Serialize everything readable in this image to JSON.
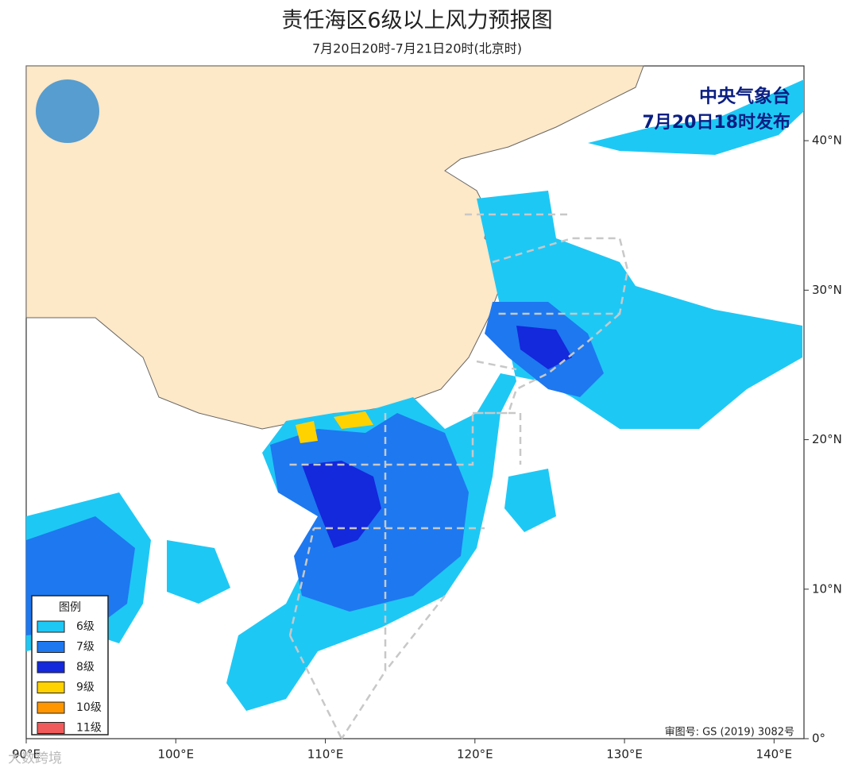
{
  "title": "责任海区6级以上风力预报图",
  "subtitle": "7月20日20时-7月21日20时(北京时)",
  "issuer": "中央气象台",
  "issued": "7月20日18时发布",
  "approval": "审图号: GS (2019) 3082号",
  "watermark": "大数跨境",
  "legend": {
    "title": "图例",
    "items": [
      {
        "label": "6级",
        "color": "#1ec8f5"
      },
      {
        "label": "7级",
        "color": "#1e78f0"
      },
      {
        "label": "8级",
        "color": "#1428dc"
      },
      {
        "label": "9级",
        "color": "#ffd200"
      },
      {
        "label": "10级",
        "color": "#ff9600"
      },
      {
        "label": "11级",
        "color": "#f05a5a"
      }
    ]
  },
  "map": {
    "xlim": [
      90,
      142
    ],
    "ylim": [
      0,
      45
    ],
    "xticks": [
      {
        "value": 90,
        "label": "90°E"
      },
      {
        "value": 100,
        "label": "100°E"
      },
      {
        "value": 110,
        "label": "110°E"
      },
      {
        "value": 120,
        "label": "120°E"
      },
      {
        "value": 130,
        "label": "130°E"
      },
      {
        "value": 140,
        "label": "140°E"
      }
    ],
    "yticks": [
      {
        "value": 0,
        "label": "0°"
      },
      {
        "value": 10,
        "label": "10°N"
      },
      {
        "value": 20,
        "label": "20°N"
      },
      {
        "value": 30,
        "label": "30°N"
      },
      {
        "value": 40,
        "label": "40°N"
      }
    ]
  }
}
